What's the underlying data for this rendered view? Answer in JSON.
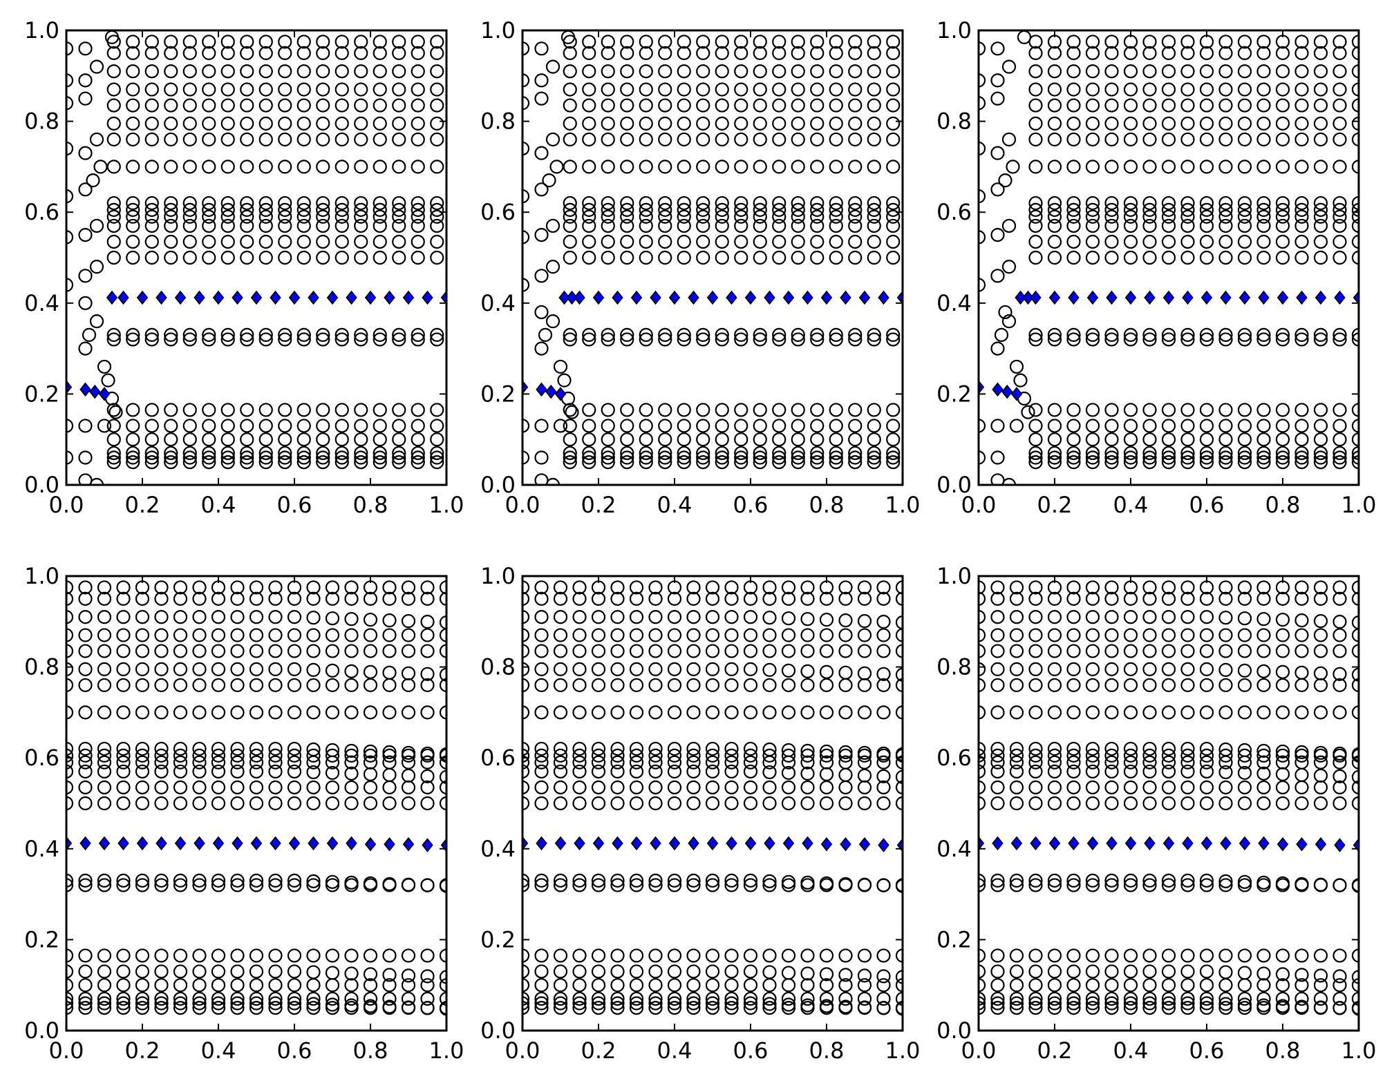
{
  "chart_data": {
    "type": "scatter",
    "layout": "2x3 grid of scatter panels",
    "grid": false,
    "legend": "none",
    "colors": {
      "circle_stroke": "#000000",
      "diamond_fill": "#0000ff",
      "diamond_stroke": "#000000"
    },
    "x_ticks": [
      "0.0",
      "0.2",
      "0.4",
      "0.6",
      "0.8",
      "1.0"
    ],
    "y_ticks": [
      "0.0",
      "0.2",
      "0.4",
      "0.6",
      "0.8",
      "1.0"
    ],
    "panels": [
      {
        "id": "top-left",
        "xlim": [
          0,
          1
        ],
        "ylim": [
          0,
          1
        ],
        "variant": "bend",
        "circle_rows_y": [
          0.05,
          0.06,
          0.07,
          0.1,
          0.13,
          0.165,
          0.32,
          0.33,
          0.5,
          0.535,
          0.57,
          0.59,
          0.605,
          0.62,
          0.7,
          0.76,
          0.795,
          0.835,
          0.87,
          0.91,
          0.95,
          0.975
        ],
        "circle_x_start": 0.125,
        "circle_x_end": 1.0,
        "circle_x_step": 0.05,
        "left_bend_points": [
          [
            0.0,
            0.13
          ],
          [
            0.05,
            0.13
          ],
          [
            0.1,
            0.13
          ],
          [
            0.0,
            0.06
          ],
          [
            0.05,
            0.06
          ],
          [
            0.05,
            0.01
          ],
          [
            0.08,
            0.0
          ],
          [
            0.05,
            0.3
          ],
          [
            0.06,
            0.33
          ],
          [
            0.1,
            0.26
          ],
          [
            0.11,
            0.23
          ],
          [
            0.12,
            0.19
          ],
          [
            0.13,
            0.16
          ],
          [
            0.08,
            0.36
          ],
          [
            0.05,
            0.4
          ],
          [
            0.0,
            0.44
          ],
          [
            0.05,
            0.46
          ],
          [
            0.08,
            0.48
          ],
          [
            0.0,
            0.545
          ],
          [
            0.05,
            0.55
          ],
          [
            0.08,
            0.57
          ],
          [
            0.05,
            0.65
          ],
          [
            0.0,
            0.635
          ],
          [
            0.07,
            0.67
          ],
          [
            0.09,
            0.7
          ],
          [
            0.0,
            0.74
          ],
          [
            0.05,
            0.73
          ],
          [
            0.08,
            0.76
          ],
          [
            0.0,
            0.84
          ],
          [
            0.05,
            0.85
          ],
          [
            0.0,
            0.89
          ],
          [
            0.05,
            0.89
          ],
          [
            0.08,
            0.92
          ],
          [
            0.0,
            0.96
          ],
          [
            0.05,
            0.96
          ],
          [
            0.12,
            0.985
          ]
        ],
        "diamonds": [
          [
            0.0,
            0.215
          ],
          [
            0.05,
            0.21
          ],
          [
            0.075,
            0.205
          ],
          [
            0.1,
            0.2
          ],
          [
            0.12,
            0.412
          ],
          [
            0.15,
            0.412
          ],
          [
            0.2,
            0.412
          ],
          [
            0.25,
            0.412
          ],
          [
            0.3,
            0.412
          ],
          [
            0.35,
            0.412
          ],
          [
            0.4,
            0.412
          ],
          [
            0.45,
            0.412
          ],
          [
            0.5,
            0.412
          ],
          [
            0.55,
            0.412
          ],
          [
            0.6,
            0.412
          ],
          [
            0.65,
            0.412
          ],
          [
            0.7,
            0.412
          ],
          [
            0.75,
            0.412
          ],
          [
            0.8,
            0.412
          ],
          [
            0.85,
            0.412
          ],
          [
            0.9,
            0.412
          ],
          [
            0.95,
            0.412
          ],
          [
            1.0,
            0.412
          ]
        ]
      },
      {
        "id": "top-middle",
        "xlim": [
          0,
          1
        ],
        "ylim": [
          0,
          1
        ],
        "variant": "bend",
        "circle_rows_y": [
          0.05,
          0.06,
          0.07,
          0.1,
          0.13,
          0.165,
          0.32,
          0.33,
          0.5,
          0.535,
          0.57,
          0.59,
          0.605,
          0.62,
          0.7,
          0.76,
          0.795,
          0.835,
          0.87,
          0.91,
          0.95,
          0.975
        ],
        "circle_x_start": 0.125,
        "circle_x_end": 1.0,
        "circle_x_step": 0.05,
        "left_bend_points": [
          [
            0.0,
            0.13
          ],
          [
            0.05,
            0.13
          ],
          [
            0.1,
            0.13
          ],
          [
            0.0,
            0.06
          ],
          [
            0.05,
            0.06
          ],
          [
            0.05,
            0.01
          ],
          [
            0.08,
            0.0
          ],
          [
            0.05,
            0.3
          ],
          [
            0.06,
            0.33
          ],
          [
            0.1,
            0.26
          ],
          [
            0.11,
            0.23
          ],
          [
            0.12,
            0.19
          ],
          [
            0.13,
            0.16
          ],
          [
            0.08,
            0.36
          ],
          [
            0.05,
            0.38
          ],
          [
            0.0,
            0.44
          ],
          [
            0.05,
            0.46
          ],
          [
            0.08,
            0.48
          ],
          [
            0.0,
            0.545
          ],
          [
            0.05,
            0.55
          ],
          [
            0.08,
            0.57
          ],
          [
            0.05,
            0.65
          ],
          [
            0.0,
            0.635
          ],
          [
            0.07,
            0.67
          ],
          [
            0.09,
            0.7
          ],
          [
            0.0,
            0.74
          ],
          [
            0.05,
            0.73
          ],
          [
            0.08,
            0.76
          ],
          [
            0.0,
            0.84
          ],
          [
            0.05,
            0.85
          ],
          [
            0.0,
            0.89
          ],
          [
            0.05,
            0.89
          ],
          [
            0.08,
            0.92
          ],
          [
            0.0,
            0.96
          ],
          [
            0.05,
            0.96
          ],
          [
            0.12,
            0.985
          ]
        ],
        "diamonds": [
          [
            0.0,
            0.215
          ],
          [
            0.05,
            0.21
          ],
          [
            0.075,
            0.205
          ],
          [
            0.1,
            0.2
          ],
          [
            0.11,
            0.412
          ],
          [
            0.13,
            0.412
          ],
          [
            0.15,
            0.412
          ],
          [
            0.2,
            0.412
          ],
          [
            0.25,
            0.412
          ],
          [
            0.3,
            0.412
          ],
          [
            0.35,
            0.412
          ],
          [
            0.4,
            0.412
          ],
          [
            0.45,
            0.412
          ],
          [
            0.5,
            0.412
          ],
          [
            0.55,
            0.412
          ],
          [
            0.6,
            0.412
          ],
          [
            0.65,
            0.412
          ],
          [
            0.7,
            0.412
          ],
          [
            0.75,
            0.412
          ],
          [
            0.8,
            0.412
          ],
          [
            0.85,
            0.412
          ],
          [
            0.9,
            0.412
          ],
          [
            0.95,
            0.412
          ],
          [
            1.0,
            0.412
          ]
        ]
      },
      {
        "id": "top-right",
        "xlim": [
          0,
          1
        ],
        "ylim": [
          0,
          1
        ],
        "variant": "bend",
        "circle_rows_y": [
          0.05,
          0.06,
          0.07,
          0.1,
          0.13,
          0.165,
          0.32,
          0.33,
          0.5,
          0.535,
          0.57,
          0.59,
          0.605,
          0.62,
          0.7,
          0.76,
          0.795,
          0.835,
          0.87,
          0.91,
          0.95,
          0.975
        ],
        "circle_x_start": 0.15,
        "circle_x_end": 1.0,
        "circle_x_step": 0.05,
        "left_bend_points": [
          [
            0.0,
            0.13
          ],
          [
            0.05,
            0.13
          ],
          [
            0.1,
            0.13
          ],
          [
            0.0,
            0.06
          ],
          [
            0.05,
            0.06
          ],
          [
            0.05,
            0.01
          ],
          [
            0.08,
            0.0
          ],
          [
            0.05,
            0.3
          ],
          [
            0.06,
            0.33
          ],
          [
            0.1,
            0.26
          ],
          [
            0.11,
            0.23
          ],
          [
            0.12,
            0.19
          ],
          [
            0.13,
            0.16
          ],
          [
            0.08,
            0.36
          ],
          [
            0.07,
            0.38
          ],
          [
            0.0,
            0.44
          ],
          [
            0.05,
            0.46
          ],
          [
            0.08,
            0.48
          ],
          [
            0.0,
            0.545
          ],
          [
            0.05,
            0.55
          ],
          [
            0.08,
            0.57
          ],
          [
            0.05,
            0.65
          ],
          [
            0.0,
            0.635
          ],
          [
            0.07,
            0.67
          ],
          [
            0.09,
            0.7
          ],
          [
            0.0,
            0.74
          ],
          [
            0.05,
            0.73
          ],
          [
            0.08,
            0.76
          ],
          [
            0.0,
            0.84
          ],
          [
            0.05,
            0.85
          ],
          [
            0.0,
            0.89
          ],
          [
            0.05,
            0.89
          ],
          [
            0.08,
            0.92
          ],
          [
            0.0,
            0.96
          ],
          [
            0.05,
            0.96
          ],
          [
            0.12,
            0.985
          ]
        ],
        "diamonds": [
          [
            0.0,
            0.215
          ],
          [
            0.05,
            0.21
          ],
          [
            0.075,
            0.205
          ],
          [
            0.1,
            0.2
          ],
          [
            0.11,
            0.412
          ],
          [
            0.13,
            0.412
          ],
          [
            0.15,
            0.412
          ],
          [
            0.2,
            0.412
          ],
          [
            0.25,
            0.412
          ],
          [
            0.3,
            0.412
          ],
          [
            0.35,
            0.412
          ],
          [
            0.4,
            0.412
          ],
          [
            0.45,
            0.412
          ],
          [
            0.5,
            0.412
          ],
          [
            0.55,
            0.412
          ],
          [
            0.6,
            0.412
          ],
          [
            0.65,
            0.412
          ],
          [
            0.7,
            0.412
          ],
          [
            0.75,
            0.412
          ],
          [
            0.8,
            0.412
          ],
          [
            0.85,
            0.412
          ],
          [
            0.9,
            0.412
          ],
          [
            0.95,
            0.412
          ],
          [
            1.0,
            0.412
          ]
        ]
      },
      {
        "id": "bottom-left",
        "xlim": [
          0,
          1
        ],
        "ylim": [
          0,
          1
        ],
        "variant": "full",
        "circle_rows_y": [
          0.05,
          0.06,
          0.07,
          0.1,
          0.13,
          0.165,
          0.32,
          0.33,
          0.5,
          0.535,
          0.57,
          0.59,
          0.605,
          0.62,
          0.7,
          0.76,
          0.795,
          0.835,
          0.87,
          0.91,
          0.95,
          0.975
        ],
        "circle_x_start": 0.0,
        "circle_x_end": 1.0,
        "circle_x_step": 0.05,
        "left_bend_points": [],
        "diamonds": [
          [
            0.0,
            0.412
          ],
          [
            0.05,
            0.412
          ],
          [
            0.1,
            0.412
          ],
          [
            0.15,
            0.412
          ],
          [
            0.2,
            0.412
          ],
          [
            0.25,
            0.412
          ],
          [
            0.3,
            0.412
          ],
          [
            0.35,
            0.412
          ],
          [
            0.4,
            0.412
          ],
          [
            0.45,
            0.412
          ],
          [
            0.5,
            0.412
          ],
          [
            0.55,
            0.412
          ],
          [
            0.6,
            0.412
          ],
          [
            0.65,
            0.412
          ],
          [
            0.7,
            0.412
          ],
          [
            0.75,
            0.412
          ],
          [
            0.8,
            0.41
          ],
          [
            0.85,
            0.41
          ],
          [
            0.9,
            0.41
          ],
          [
            0.95,
            0.408
          ],
          [
            1.0,
            0.408
          ]
        ]
      },
      {
        "id": "bottom-middle",
        "xlim": [
          0,
          1
        ],
        "ylim": [
          0,
          1
        ],
        "variant": "full",
        "circle_rows_y": [
          0.05,
          0.06,
          0.07,
          0.1,
          0.13,
          0.165,
          0.32,
          0.33,
          0.5,
          0.535,
          0.57,
          0.59,
          0.605,
          0.62,
          0.7,
          0.76,
          0.795,
          0.835,
          0.87,
          0.91,
          0.95,
          0.975
        ],
        "circle_x_start": 0.0,
        "circle_x_end": 1.0,
        "circle_x_step": 0.05,
        "left_bend_points": [],
        "diamonds": [
          [
            0.0,
            0.412
          ],
          [
            0.05,
            0.412
          ],
          [
            0.1,
            0.412
          ],
          [
            0.15,
            0.412
          ],
          [
            0.2,
            0.412
          ],
          [
            0.25,
            0.412
          ],
          [
            0.3,
            0.412
          ],
          [
            0.35,
            0.412
          ],
          [
            0.4,
            0.412
          ],
          [
            0.45,
            0.412
          ],
          [
            0.5,
            0.412
          ],
          [
            0.55,
            0.412
          ],
          [
            0.6,
            0.412
          ],
          [
            0.65,
            0.412
          ],
          [
            0.7,
            0.412
          ],
          [
            0.75,
            0.412
          ],
          [
            0.8,
            0.41
          ],
          [
            0.85,
            0.41
          ],
          [
            0.9,
            0.41
          ],
          [
            0.95,
            0.408
          ],
          [
            1.0,
            0.408
          ]
        ]
      },
      {
        "id": "bottom-right",
        "xlim": [
          0,
          1
        ],
        "ylim": [
          0,
          1
        ],
        "variant": "full",
        "circle_rows_y": [
          0.05,
          0.06,
          0.07,
          0.1,
          0.13,
          0.165,
          0.32,
          0.33,
          0.5,
          0.535,
          0.57,
          0.59,
          0.605,
          0.62,
          0.7,
          0.76,
          0.795,
          0.835,
          0.87,
          0.91,
          0.95,
          0.975
        ],
        "circle_x_start": 0.0,
        "circle_x_end": 1.0,
        "circle_x_step": 0.05,
        "left_bend_points": [],
        "diamonds": [
          [
            0.0,
            0.412
          ],
          [
            0.05,
            0.412
          ],
          [
            0.1,
            0.412
          ],
          [
            0.15,
            0.412
          ],
          [
            0.2,
            0.412
          ],
          [
            0.25,
            0.412
          ],
          [
            0.3,
            0.412
          ],
          [
            0.35,
            0.412
          ],
          [
            0.4,
            0.412
          ],
          [
            0.45,
            0.412
          ],
          [
            0.5,
            0.412
          ],
          [
            0.55,
            0.412
          ],
          [
            0.6,
            0.412
          ],
          [
            0.65,
            0.412
          ],
          [
            0.7,
            0.412
          ],
          [
            0.75,
            0.412
          ],
          [
            0.8,
            0.41
          ],
          [
            0.85,
            0.41
          ],
          [
            0.9,
            0.41
          ],
          [
            0.95,
            0.408
          ],
          [
            1.0,
            0.408
          ]
        ]
      }
    ]
  }
}
